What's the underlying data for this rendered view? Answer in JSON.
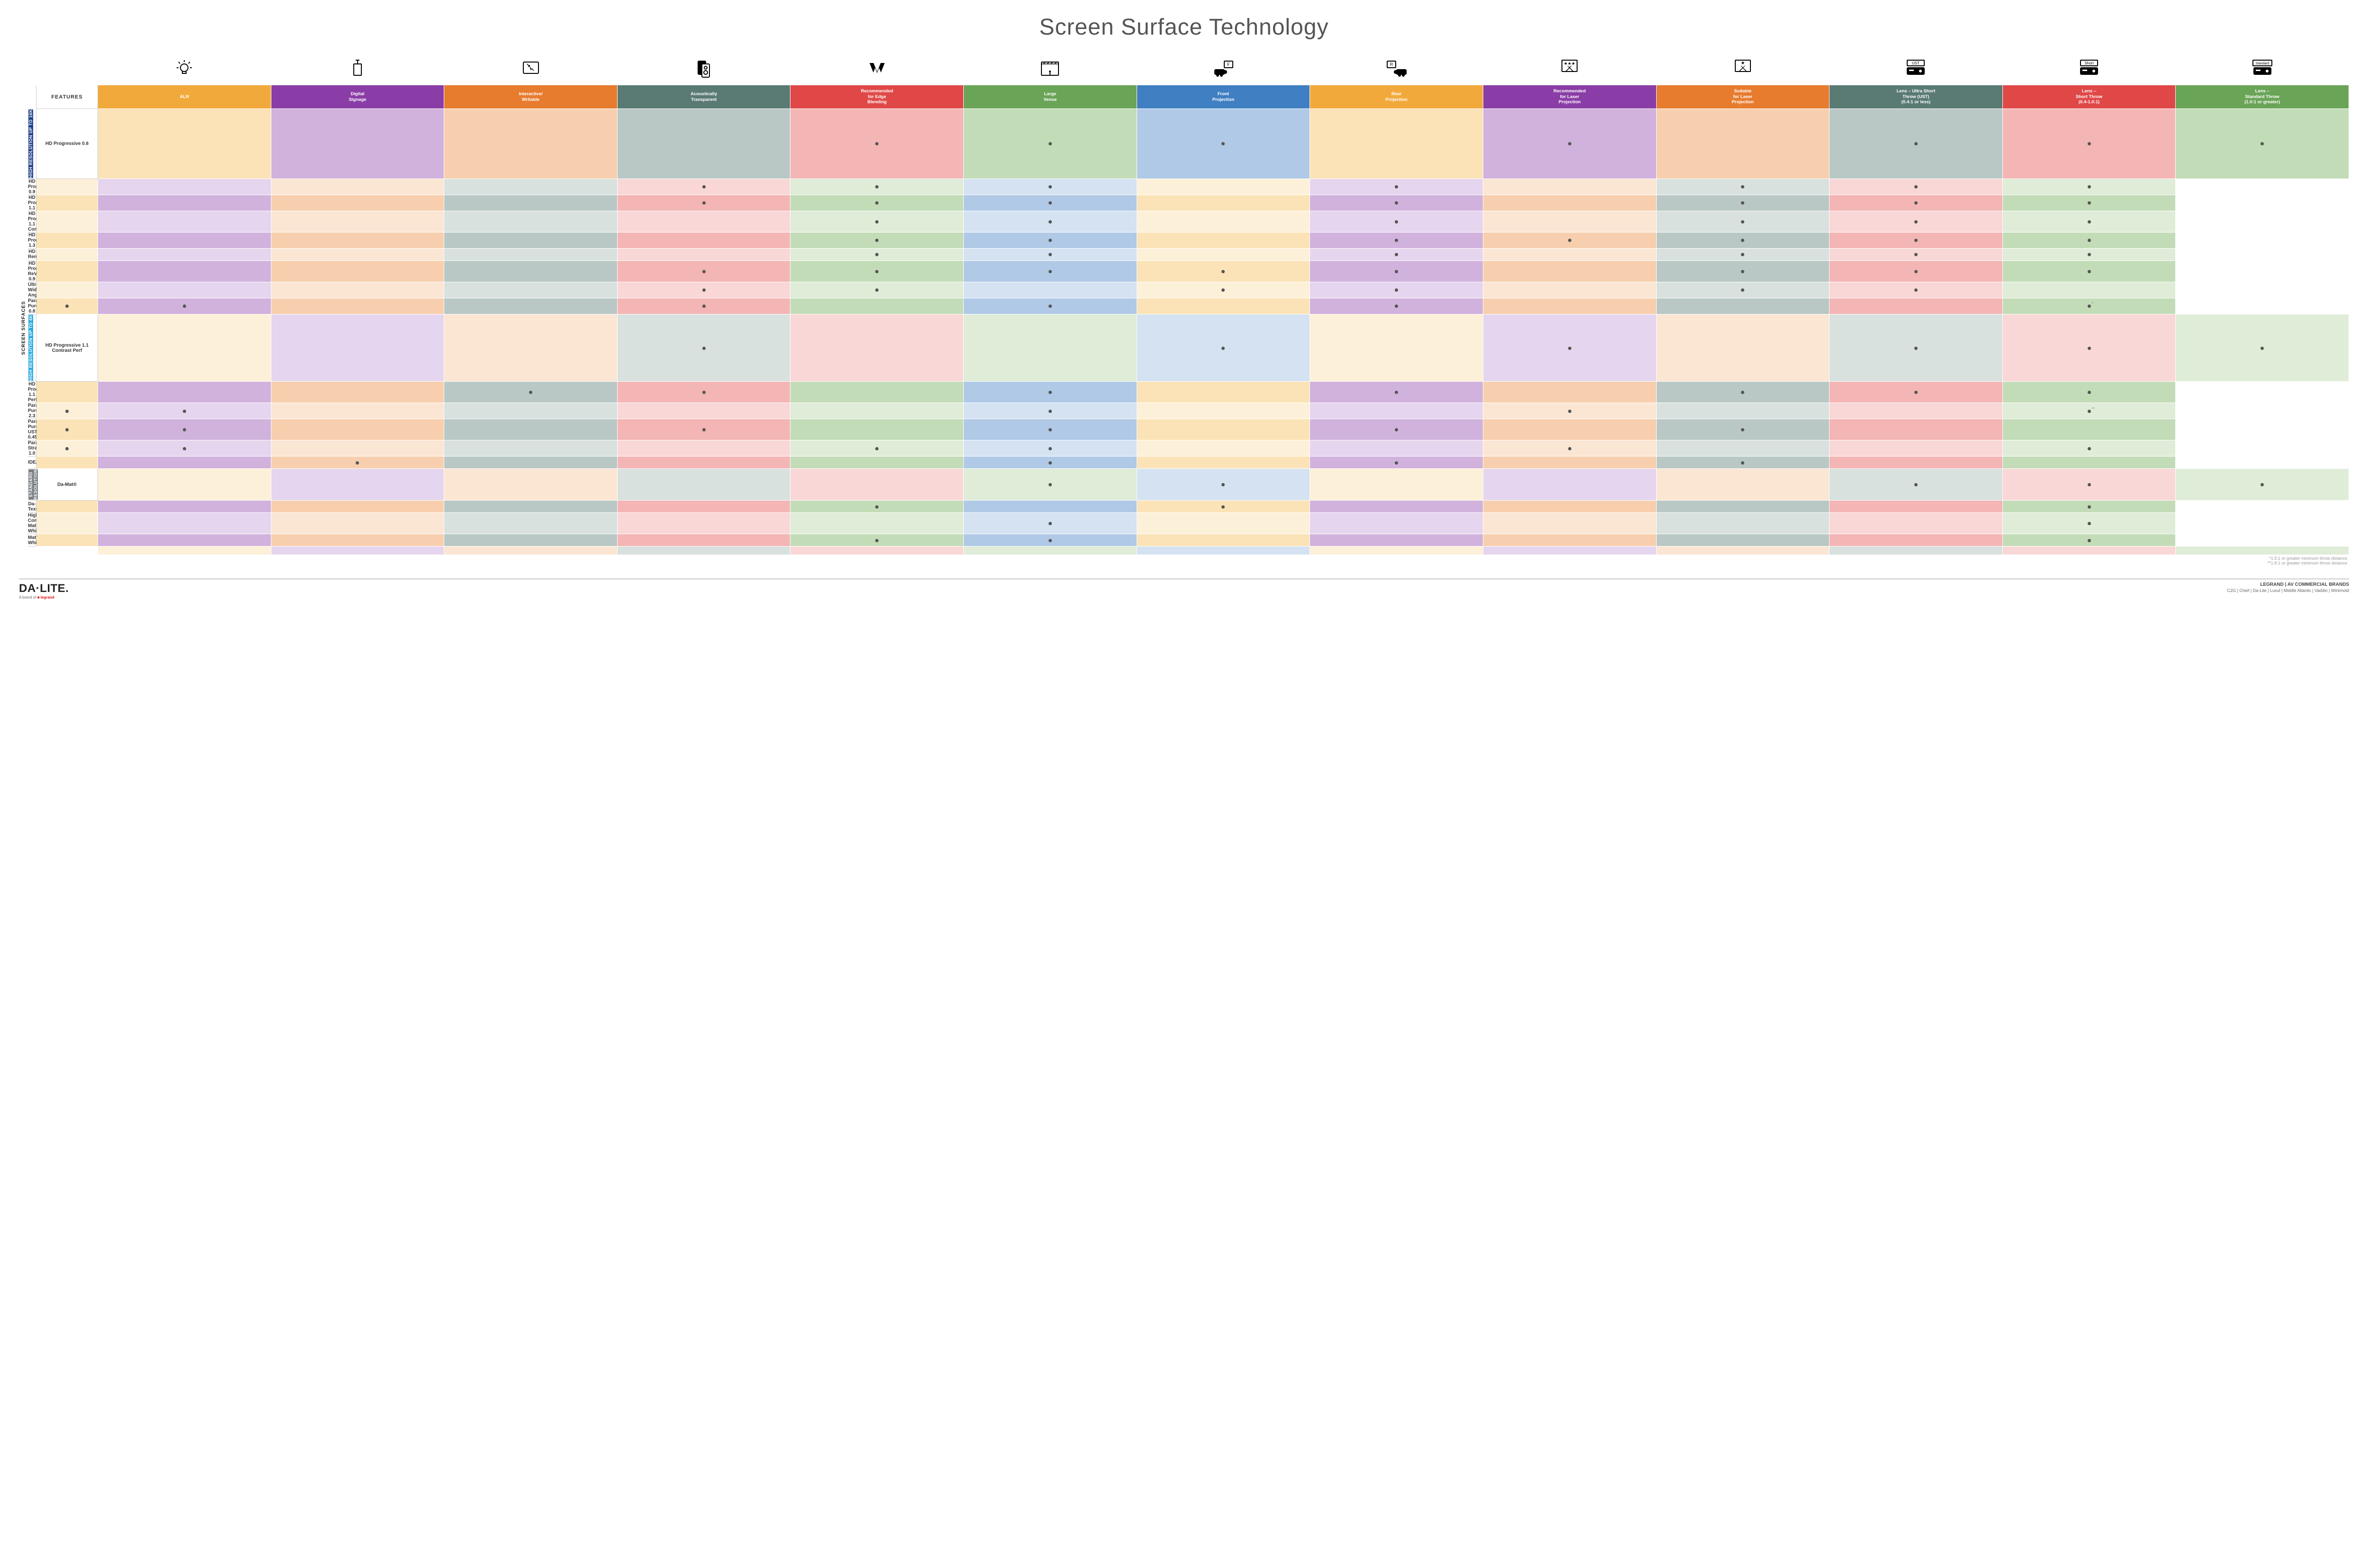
{
  "title": "Screen Surface Technology",
  "features_header": "FEATURES",
  "side_label": "SCREEN SURFACES",
  "columns": [
    {
      "label": "ALR",
      "color": "#f2a93c",
      "light": "#fbe3b7",
      "lighter": "#fdf0d8"
    },
    {
      "label": "Digital\nSignage",
      "color": "#8a3da6",
      "light": "#d1b2dd",
      "lighter": "#e6d5ee"
    },
    {
      "label": "Interactive/\nWritable",
      "color": "#e77b2e",
      "light": "#f7cfae",
      "lighter": "#fbe6d3"
    },
    {
      "label": "Acoustically\nTransparent",
      "color": "#5a7a74",
      "light": "#b9c8c4",
      "lighter": "#d8e1de"
    },
    {
      "label": "Recommended\nfor Edge\nBlending",
      "color": "#e04848",
      "light": "#f4b5b5",
      "lighter": "#f9d7d7"
    },
    {
      "label": "Large\nVenue",
      "color": "#6aa457",
      "light": "#c3dcb8",
      "lighter": "#dfecd8"
    },
    {
      "label": "Front\nProjection",
      "color": "#3f7fc2",
      "light": "#b0c9e6",
      "lighter": "#d4e2f2"
    },
    {
      "label": "Rear\nProjection",
      "color": "#f2a93c",
      "light": "#fbe3b7",
      "lighter": "#fdf0d8"
    },
    {
      "label": "Recommended\nfor Laser\nProjection",
      "color": "#8a3da6",
      "light": "#d1b2dd",
      "lighter": "#e6d5ee"
    },
    {
      "label": "Suitable\nfor Laser\nProjection",
      "color": "#e77b2e",
      "light": "#f7cfae",
      "lighter": "#fbe6d3"
    },
    {
      "label": "Lens – Ultra Short\nThrow (UST)\n(0.4:1 or less)",
      "color": "#5a7a74",
      "light": "#b9c8c4",
      "lighter": "#d8e1de"
    },
    {
      "label": "Lens –\nShort Throw\n(0.4-1.0:1)",
      "color": "#e04848",
      "light": "#f4b5b5",
      "lighter": "#f9d7d7"
    },
    {
      "label": "Lens –\nStandard Throw\n(1.0:1 or greater)",
      "color": "#6aa457",
      "light": "#c3dcb8",
      "lighter": "#dfecd8"
    }
  ],
  "groups": [
    {
      "label": "HIGH RESOLUTION UP TO 16K",
      "color": "#1c3f8a",
      "rows": [
        {
          "name": "HD Progressive 0.6",
          "marks": [
            0,
            0,
            0,
            0,
            1,
            1,
            1,
            0,
            1,
            0,
            1,
            1,
            1
          ]
        },
        {
          "name": "HD Progressive 0.9",
          "marks": [
            0,
            0,
            0,
            0,
            1,
            1,
            1,
            0,
            1,
            0,
            1,
            1,
            1
          ]
        },
        {
          "name": "HD Progressive 1.1",
          "marks": [
            0,
            0,
            0,
            0,
            1,
            1,
            1,
            0,
            1,
            0,
            1,
            1,
            1
          ]
        },
        {
          "name": "HD Progressive\n1.1 Contrast",
          "marks": [
            0,
            0,
            0,
            0,
            0,
            1,
            1,
            0,
            1,
            0,
            1,
            1,
            1
          ]
        },
        {
          "name": "HD Progressive 1.3",
          "marks": [
            0,
            0,
            0,
            0,
            0,
            1,
            1,
            0,
            1,
            1,
            1,
            1,
            1
          ]
        },
        {
          "name": "HD Rental",
          "marks": [
            0,
            0,
            0,
            0,
            0,
            1,
            1,
            0,
            1,
            0,
            1,
            1,
            1
          ]
        },
        {
          "name": "HD Progressive ReView 0.9",
          "marks": [
            0,
            0,
            0,
            0,
            1,
            1,
            1,
            1,
            1,
            0,
            1,
            1,
            1
          ]
        },
        {
          "name": "Ultra Wide Angle",
          "marks": [
            0,
            0,
            0,
            0,
            1,
            1,
            0,
            1,
            1,
            0,
            1,
            1,
            0
          ]
        },
        {
          "name": "Parallax® Pure 0.8",
          "marks": [
            1,
            1,
            0,
            0,
            1,
            0,
            1,
            0,
            1,
            0,
            0,
            0,
            1
          ],
          "note": "*"
        }
      ]
    },
    {
      "label": "HIGH RESOLUTION UP TO 4K",
      "color": "#2aa8e0",
      "rows": [
        {
          "name": "HD Progressive 1.1\nContrast Perf",
          "marks": [
            0,
            0,
            0,
            1,
            0,
            0,
            1,
            0,
            1,
            0,
            1,
            1,
            1
          ]
        },
        {
          "name": "HD Progressive 1.1 Perf",
          "marks": [
            0,
            0,
            0,
            1,
            1,
            0,
            1,
            0,
            1,
            0,
            1,
            1,
            1
          ]
        },
        {
          "name": "Parallax Pure 2.3",
          "marks": [
            1,
            1,
            0,
            0,
            0,
            0,
            1,
            0,
            0,
            1,
            0,
            0,
            1
          ],
          "note": "**"
        },
        {
          "name": "Parallax Pure UST 0.45",
          "marks": [
            1,
            1,
            0,
            0,
            1,
            0,
            1,
            0,
            1,
            0,
            1,
            0,
            0
          ]
        },
        {
          "name": "Parallax Stratos 1.0",
          "marks": [
            1,
            1,
            0,
            0,
            0,
            1,
            1,
            0,
            0,
            1,
            0,
            0,
            1
          ]
        },
        {
          "name": "IDEA™",
          "marks": [
            0,
            0,
            1,
            0,
            0,
            0,
            1,
            0,
            1,
            0,
            1,
            0,
            0
          ]
        }
      ]
    },
    {
      "label": "STANDARD\nRESOLUTION",
      "color": "#7a7f85",
      "rows": [
        {
          "name": "Da-Mat®",
          "marks": [
            0,
            0,
            0,
            0,
            0,
            1,
            1,
            0,
            0,
            0,
            1,
            1,
            1
          ]
        },
        {
          "name": "Da-Tex®",
          "marks": [
            0,
            0,
            0,
            0,
            0,
            1,
            0,
            1,
            0,
            0,
            0,
            0,
            1
          ]
        },
        {
          "name": "High Contrast\nMatte White",
          "marks": [
            0,
            0,
            0,
            0,
            0,
            0,
            1,
            0,
            0,
            0,
            0,
            0,
            1
          ]
        },
        {
          "name": "Matte White",
          "marks": [
            0,
            0,
            0,
            0,
            0,
            1,
            1,
            0,
            0,
            0,
            0,
            0,
            1
          ]
        }
      ]
    }
  ],
  "footnotes": [
    "*1.5:1 or greater minimum throw distance",
    "**1.8:1 or greater minimum throw distance"
  ],
  "footer": {
    "logo": "DA·LITE.",
    "logo_sub_prefix": "A brand of ",
    "logo_sub_brand": "legrand",
    "right_title": "LEGRAND | AV COMMERCIAL BRANDS",
    "brands": "C2G  |  Chief  |  Da-Lite  |  Luxul  |  Middle Atlantic  |  Vaddio  |  Wiremold"
  },
  "icon_size": 48
}
